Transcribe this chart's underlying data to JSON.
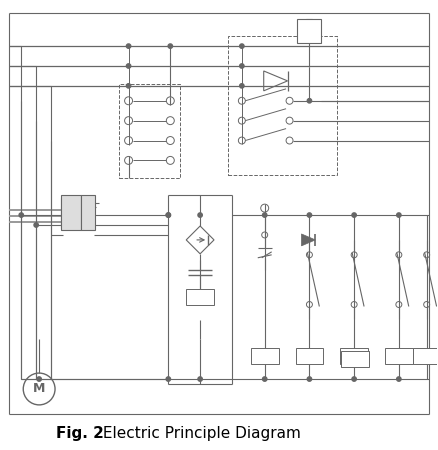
{
  "bg_color": "#ffffff",
  "line_color": "#666666",
  "lw": 0.8,
  "fig_width": 4.38,
  "fig_height": 4.5,
  "title_bold": "Fig. 2",
  "title_normal": " Electric Principle Diagram"
}
